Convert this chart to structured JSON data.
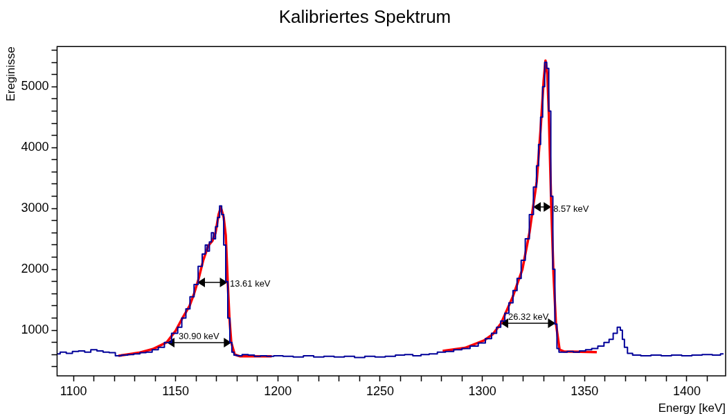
{
  "chart_data": {
    "type": "line",
    "title": "Kalibriertes Spektrum",
    "xlabel": "Energy [keV]",
    "ylabel": "Ereginisse",
    "xlim": [
      1092,
      1419
    ],
    "ylim": [
      250,
      5660
    ],
    "xticks": [
      1100,
      {
        "value": 1110,
        "label": null
      },
      {
        "value": 1120,
        "label": null
      },
      {
        "value": 1130,
        "label": null
      },
      {
        "value": 1140,
        "label": null
      },
      1150,
      {
        "value": 1160,
        "label": null
      },
      {
        "value": 1170,
        "label": null
      },
      {
        "value": 1180,
        "label": null
      },
      {
        "value": 1190,
        "label": null
      },
      1200,
      {
        "value": 1210,
        "label": null
      },
      {
        "value": 1220,
        "label": null
      },
      {
        "value": 1230,
        "label": null
      },
      {
        "value": 1240,
        "label": null
      },
      1250,
      {
        "value": 1260,
        "label": null
      },
      {
        "value": 1270,
        "label": null
      },
      {
        "value": 1280,
        "label": null
      },
      {
        "value": 1290,
        "label": null
      },
      1300,
      {
        "value": 1310,
        "label": null
      },
      {
        "value": 1320,
        "label": null
      },
      {
        "value": 1330,
        "label": null
      },
      {
        "value": 1340,
        "label": null
      },
      1350,
      {
        "value": 1360,
        "label": null
      },
      {
        "value": 1370,
        "label": null
      },
      {
        "value": 1380,
        "label": null
      },
      {
        "value": 1390,
        "label": null
      },
      1400,
      {
        "value": 1410,
        "label": null
      }
    ],
    "yticks": [
      {
        "value": 400,
        "label": null
      },
      {
        "value": 600,
        "label": null
      },
      {
        "value": 800,
        "label": null
      },
      1000,
      {
        "value": 1200,
        "label": null
      },
      {
        "value": 1400,
        "label": null
      },
      {
        "value": 1600,
        "label": null
      },
      {
        "value": 1800,
        "label": null
      },
      2000,
      {
        "value": 2200,
        "label": null
      },
      {
        "value": 2400,
        "label": null
      },
      {
        "value": 2600,
        "label": null
      },
      {
        "value": 2800,
        "label": null
      },
      3000,
      {
        "value": 3200,
        "label": null
      },
      {
        "value": 3400,
        "label": null
      },
      {
        "value": 3600,
        "label": null
      },
      {
        "value": 3800,
        "label": null
      },
      4000,
      {
        "value": 4200,
        "label": null
      },
      {
        "value": 4400,
        "label": null
      },
      {
        "value": 4600,
        "label": null
      },
      {
        "value": 4800,
        "label": null
      },
      5000,
      {
        "value": 5200,
        "label": null
      },
      {
        "value": 5400,
        "label": null
      },
      {
        "value": 5600,
        "label": null
      }
    ],
    "grid": false,
    "legend": false,
    "marker": "none",
    "series": [
      {
        "type": "step",
        "color": "#000099",
        "x": [
          1092,
          1095,
          1098,
          1101,
          1104,
          1107,
          1110,
          1113,
          1116,
          1119,
          1122,
          1125,
          1128,
          1131,
          1134,
          1137,
          1140,
          1143,
          1146,
          1150,
          1152,
          1154,
          1156,
          1158,
          1160,
          1162,
          1164,
          1165,
          1166,
          1167,
          1168,
          1169,
          1170,
          1171,
          1172,
          1173,
          1174,
          1175,
          1176,
          1177,
          1178,
          1179,
          1181,
          1184,
          1187,
          1190,
          1193,
          1196,
          1200,
          1205,
          1210,
          1215,
          1220,
          1225,
          1230,
          1235,
          1240,
          1245,
          1250,
          1255,
          1260,
          1264,
          1268,
          1272,
          1276,
          1280,
          1284,
          1288,
          1292,
          1296,
          1300,
          1303,
          1306,
          1308,
          1310,
          1312,
          1314,
          1316,
          1318,
          1320,
          1322,
          1324,
          1326,
          1327,
          1328,
          1329,
          1330,
          1331,
          1332,
          1333,
          1334,
          1335,
          1336,
          1337,
          1338,
          1340,
          1343,
          1346,
          1349,
          1352,
          1355,
          1358,
          1361,
          1363,
          1365,
          1367,
          1368,
          1369,
          1370,
          1372,
          1375,
          1380,
          1385,
          1390,
          1395,
          1400,
          1405,
          1410,
          1415,
          1418
        ],
        "values": [
          610,
          640,
          620,
          650,
          660,
          640,
          680,
          660,
          640,
          630,
          580,
          590,
          600,
          610,
          630,
          640,
          680,
          720,
          800,
          950,
          1050,
          1200,
          1350,
          1550,
          1750,
          2050,
          2250,
          2400,
          2300,
          2450,
          2600,
          2500,
          2700,
          2850,
          3040,
          2900,
          2400,
          1800,
          1200,
          800,
          640,
          590,
          580,
          600,
          590,
          570,
          580,
          570,
          580,
          570,
          560,
          580,
          560,
          570,
          560,
          570,
          550,
          570,
          560,
          570,
          590,
          600,
          580,
          600,
          610,
          640,
          650,
          680,
          700,
          740,
          790,
          860,
          950,
          1050,
          1150,
          1280,
          1450,
          1650,
          1850,
          2150,
          2500,
          2900,
          3350,
          3700,
          4050,
          4500,
          5000,
          5400,
          5300,
          4600,
          3200,
          2000,
          1100,
          700,
          640,
          640,
          650,
          640,
          660,
          680,
          700,
          740,
          800,
          850,
          950,
          1050,
          1000,
          850,
          720,
          620,
          590,
          580,
          590,
          580,
          590,
          580,
          590,
          600,
          590,
          610
        ]
      },
      {
        "type": "line",
        "color": "#ff0000",
        "x": [
          1122,
          1126,
          1132,
          1138.8,
          1145.6,
          1150,
          1153,
          1156.8,
          1159,
          1161.2,
          1163.5,
          1166,
          1168,
          1169.5,
          1171,
          1172.1,
          1173.5,
          1174.5,
          1175.5,
          1176.3,
          1177.2,
          1178.9,
          1181.6,
          1190,
          1197,
          1240,
          1280.6,
          1291.5,
          1300.8,
          1305,
          1309.1,
          1314.9,
          1319.6,
          1323.1,
          1324.8,
          1326.6,
          1328.5,
          1330,
          1330.9,
          1331.8,
          1332.5,
          1333.7,
          1334.8,
          1336,
          1337.8,
          1340,
          1356
        ],
        "values": [
          580,
          600,
          630,
          690,
          800,
          990,
          1180,
          1400,
          1600,
          1840,
          2150,
          2390,
          2470,
          2600,
          2900,
          3020,
          2850,
          2560,
          1760,
          1200,
          800,
          600,
          570,
          570,
          570,
          null,
          660,
          710,
          830,
          930,
          1110,
          1550,
          2000,
          2610,
          3020,
          3440,
          4300,
          5100,
          5430,
          5200,
          4580,
          3060,
          1930,
          1110,
          680,
          650,
          640
        ]
      }
    ],
    "annotations": [
      {
        "text": "13.61 keV",
        "x": 1175.5,
        "y": 1790
      },
      {
        "text": "30.90 keV",
        "x": 1177.2,
        "y": 800
      },
      {
        "text": "26.32 keV",
        "x": 1336,
        "y": 1110
      },
      {
        "text": "8.57 keV",
        "x": 1333.7,
        "y": 3020
      }
    ]
  }
}
